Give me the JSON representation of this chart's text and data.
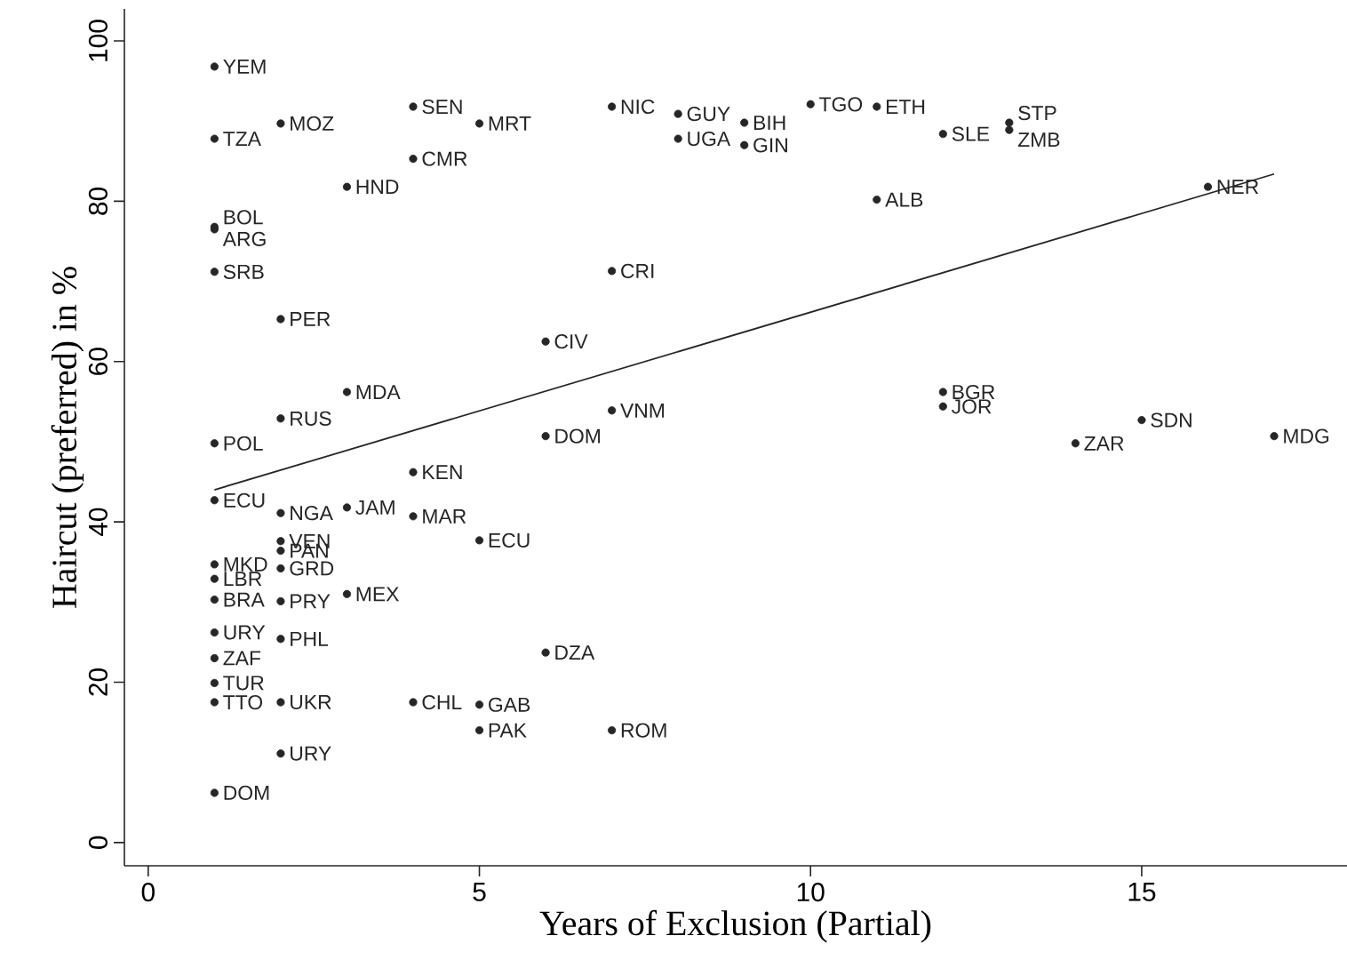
{
  "chart_data": {
    "type": "scatter",
    "xlabel": "Years of Exclusion (Partial)",
    "ylabel": "Haircut (preferred) in %",
    "xlim": [
      -0.36,
      18.1
    ],
    "ylim": [
      -2.9,
      104
    ],
    "xticks": [
      0,
      5,
      10,
      15
    ],
    "yticks": [
      0,
      20,
      40,
      60,
      80,
      100
    ],
    "grid": false,
    "marker": "circle",
    "series": [
      {
        "color": "#262626",
        "x": [
          1,
          1,
          2,
          4,
          5,
          4,
          3,
          1,
          1,
          1,
          2,
          6,
          3,
          2,
          1,
          6,
          7,
          8,
          8,
          9,
          9,
          10,
          11,
          12,
          13,
          13,
          11,
          16,
          7,
          7,
          12,
          12,
          15,
          14,
          17,
          1,
          4,
          2,
          3,
          4,
          5,
          2,
          2,
          2,
          1,
          1,
          1,
          2,
          3,
          1,
          2,
          1,
          1,
          1,
          2,
          4,
          5,
          5,
          2,
          1,
          6,
          7
        ],
        "values": [
          96.8,
          87.8,
          89.7,
          91.8,
          89.7,
          85.3,
          81.8,
          76.5,
          76.8,
          71.2,
          65.3,
          62.5,
          56.2,
          52.9,
          49.8,
          50.7,
          91.8,
          90.9,
          87.8,
          89.8,
          87.0,
          92.1,
          91.8,
          88.4,
          89.8,
          88.9,
          80.2,
          81.8,
          71.3,
          53.9,
          56.2,
          54.4,
          52.7,
          49.8,
          50.7,
          42.7,
          46.2,
          41.1,
          41.8,
          40.7,
          37.7,
          37.6,
          36.4,
          34.2,
          34.7,
          32.9,
          30.3,
          30.1,
          31.0,
          26.2,
          25.4,
          23.0,
          19.9,
          17.5,
          17.5,
          17.5,
          17.2,
          14.0,
          11.1,
          6.2,
          23.7,
          14.0
        ]
      },
      {
        "type": "line",
        "marker": "none",
        "line_style": "solid",
        "color": "#262626",
        "x": [
          1,
          17
        ],
        "values": [
          44.0,
          83.4
        ]
      }
    ],
    "annotations": [
      {
        "text": "YEM",
        "x": 1,
        "y": 96.8
      },
      {
        "text": "TZA",
        "x": 1,
        "y": 87.8
      },
      {
        "text": "MOZ",
        "x": 2,
        "y": 89.7
      },
      {
        "text": "SEN",
        "x": 4,
        "y": 91.8
      },
      {
        "text": "MRT",
        "x": 5,
        "y": 89.7
      },
      {
        "text": "CMR",
        "x": 4,
        "y": 85.3
      },
      {
        "text": "HND",
        "x": 3,
        "y": 81.8
      },
      {
        "text": "ARG",
        "x": 1,
        "y": 76.5
      },
      {
        "text": "BOL",
        "x": 1,
        "y": 76.8
      },
      {
        "text": "SRB",
        "x": 1,
        "y": 71.2
      },
      {
        "text": "PER",
        "x": 2,
        "y": 65.3
      },
      {
        "text": "CIV",
        "x": 6,
        "y": 62.5
      },
      {
        "text": "MDA",
        "x": 3,
        "y": 56.2
      },
      {
        "text": "RUS",
        "x": 2,
        "y": 52.9
      },
      {
        "text": "POL",
        "x": 1,
        "y": 49.8
      },
      {
        "text": "DOM",
        "x": 6,
        "y": 50.7
      },
      {
        "text": "NIC",
        "x": 7,
        "y": 91.8
      },
      {
        "text": "GUY",
        "x": 8,
        "y": 90.9
      },
      {
        "text": "UGA",
        "x": 8,
        "y": 87.8
      },
      {
        "text": "BIH",
        "x": 9,
        "y": 89.8
      },
      {
        "text": "GIN",
        "x": 9,
        "y": 87.0
      },
      {
        "text": "TGO",
        "x": 10,
        "y": 92.1
      },
      {
        "text": "ETH",
        "x": 11,
        "y": 91.8
      },
      {
        "text": "SLE",
        "x": 12,
        "y": 88.4
      },
      {
        "text": "STP",
        "x": 13,
        "y": 89.8
      },
      {
        "text": "ZMB",
        "x": 13,
        "y": 88.9
      },
      {
        "text": "ALB",
        "x": 11,
        "y": 80.2
      },
      {
        "text": "NER",
        "x": 16,
        "y": 81.8
      },
      {
        "text": "CRI",
        "x": 7,
        "y": 71.3
      },
      {
        "text": "VNM",
        "x": 7,
        "y": 53.9
      },
      {
        "text": "BGR",
        "x": 12,
        "y": 56.2
      },
      {
        "text": "JOR",
        "x": 12,
        "y": 54.4
      },
      {
        "text": "SDN",
        "x": 15,
        "y": 52.7
      },
      {
        "text": "ZAR",
        "x": 14,
        "y": 49.8
      },
      {
        "text": "MDG",
        "x": 17,
        "y": 50.7
      },
      {
        "text": "ECU",
        "x": 1,
        "y": 42.7
      },
      {
        "text": "KEN",
        "x": 4,
        "y": 46.2
      },
      {
        "text": "NGA",
        "x": 2,
        "y": 41.1
      },
      {
        "text": "JAM",
        "x": 3,
        "y": 41.8
      },
      {
        "text": "MAR",
        "x": 4,
        "y": 40.7
      },
      {
        "text": "ECU",
        "x": 5,
        "y": 37.7
      },
      {
        "text": "VEN",
        "x": 2,
        "y": 37.6
      },
      {
        "text": "PAN",
        "x": 2,
        "y": 36.4
      },
      {
        "text": "GRD",
        "x": 2,
        "y": 34.2
      },
      {
        "text": "MKD",
        "x": 1,
        "y": 34.7
      },
      {
        "text": "LBR",
        "x": 1,
        "y": 32.9
      },
      {
        "text": "BRA",
        "x": 1,
        "y": 30.3
      },
      {
        "text": "PRY",
        "x": 2,
        "y": 30.1
      },
      {
        "text": "MEX",
        "x": 3,
        "y": 31.0
      },
      {
        "text": "URY",
        "x": 1,
        "y": 26.2
      },
      {
        "text": "PHL",
        "x": 2,
        "y": 25.4
      },
      {
        "text": "ZAF",
        "x": 1,
        "y": 23.0
      },
      {
        "text": "TUR",
        "x": 1,
        "y": 19.9
      },
      {
        "text": "TTO",
        "x": 1,
        "y": 17.5
      },
      {
        "text": "UKR",
        "x": 2,
        "y": 17.5
      },
      {
        "text": "CHL",
        "x": 4,
        "y": 17.5
      },
      {
        "text": "GAB",
        "x": 5,
        "y": 17.2
      },
      {
        "text": "PAK",
        "x": 5,
        "y": 14.0
      },
      {
        "text": "URY",
        "x": 2,
        "y": 11.1
      },
      {
        "text": "DOM",
        "x": 1,
        "y": 6.2
      },
      {
        "text": "DZA",
        "x": 6,
        "y": 23.7
      },
      {
        "text": "ROM",
        "x": 7,
        "y": 14.0
      }
    ]
  }
}
